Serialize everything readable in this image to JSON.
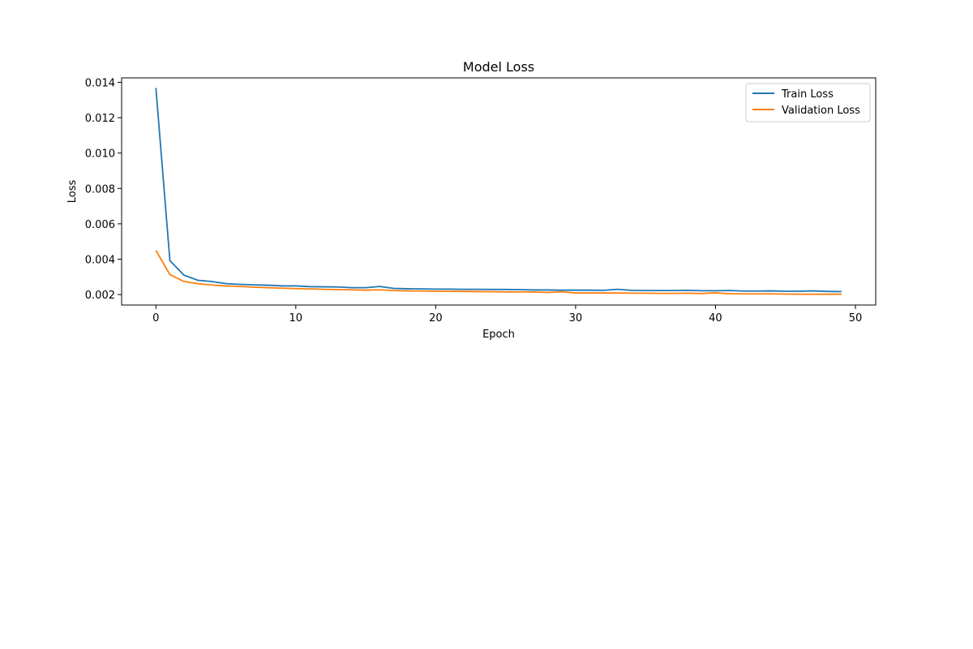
{
  "chart_data": {
    "type": "line",
    "title": "Model Loss",
    "xlabel": "Epoch",
    "ylabel": "Loss",
    "xlim": [
      -2.45,
      51.45
    ],
    "ylim": [
      0.00141,
      0.01425
    ],
    "x_ticks": [
      0,
      10,
      20,
      30,
      40,
      50
    ],
    "y_ticks": [
      0.002,
      0.004,
      0.006,
      0.008,
      0.01,
      0.012,
      0.014
    ],
    "y_tick_labels": [
      "0.002",
      "0.004",
      "0.006",
      "0.008",
      "0.010",
      "0.012",
      "0.014"
    ],
    "grid": false,
    "legend_position": "top-right",
    "x": [
      0,
      1,
      2,
      3,
      4,
      5,
      6,
      7,
      8,
      9,
      10,
      11,
      12,
      13,
      14,
      15,
      16,
      17,
      18,
      19,
      20,
      21,
      22,
      23,
      24,
      25,
      26,
      27,
      28,
      29,
      30,
      31,
      32,
      33,
      34,
      35,
      36,
      37,
      38,
      39,
      40,
      41,
      42,
      43,
      44,
      45,
      46,
      47,
      48,
      49
    ],
    "series": [
      {
        "name": "Train Loss",
        "color": "#1f77b4",
        "values": [
          0.01368,
          0.00392,
          0.0031,
          0.00281,
          0.00274,
          0.00262,
          0.00258,
          0.00255,
          0.00253,
          0.00249,
          0.00249,
          0.00245,
          0.00244,
          0.00243,
          0.00239,
          0.00239,
          0.00246,
          0.00235,
          0.00233,
          0.00232,
          0.00231,
          0.00231,
          0.0023,
          0.0023,
          0.00229,
          0.00229,
          0.00228,
          0.00226,
          0.00226,
          0.00225,
          0.00225,
          0.00225,
          0.00224,
          0.0023,
          0.00224,
          0.00223,
          0.00223,
          0.00223,
          0.00224,
          0.00222,
          0.00222,
          0.00223,
          0.0022,
          0.0022,
          0.00221,
          0.00219,
          0.00219,
          0.00221,
          0.00218,
          0.00217
        ]
      },
      {
        "name": "Validation Loss",
        "color": "#ff7f0e",
        "values": [
          0.0045,
          0.00313,
          0.00274,
          0.00262,
          0.00254,
          0.00249,
          0.00246,
          0.00242,
          0.00239,
          0.00236,
          0.00234,
          0.00232,
          0.0023,
          0.00228,
          0.00227,
          0.00225,
          0.00227,
          0.00223,
          0.00221,
          0.0022,
          0.00219,
          0.00219,
          0.00218,
          0.00217,
          0.00216,
          0.00215,
          0.00215,
          0.00215,
          0.00212,
          0.00216,
          0.00209,
          0.00209,
          0.00209,
          0.00209,
          0.00208,
          0.00208,
          0.00207,
          0.00207,
          0.00208,
          0.00206,
          0.0021,
          0.00205,
          0.00204,
          0.00204,
          0.00204,
          0.00203,
          0.00202,
          0.00202,
          0.00202,
          0.00202
        ]
      }
    ]
  }
}
